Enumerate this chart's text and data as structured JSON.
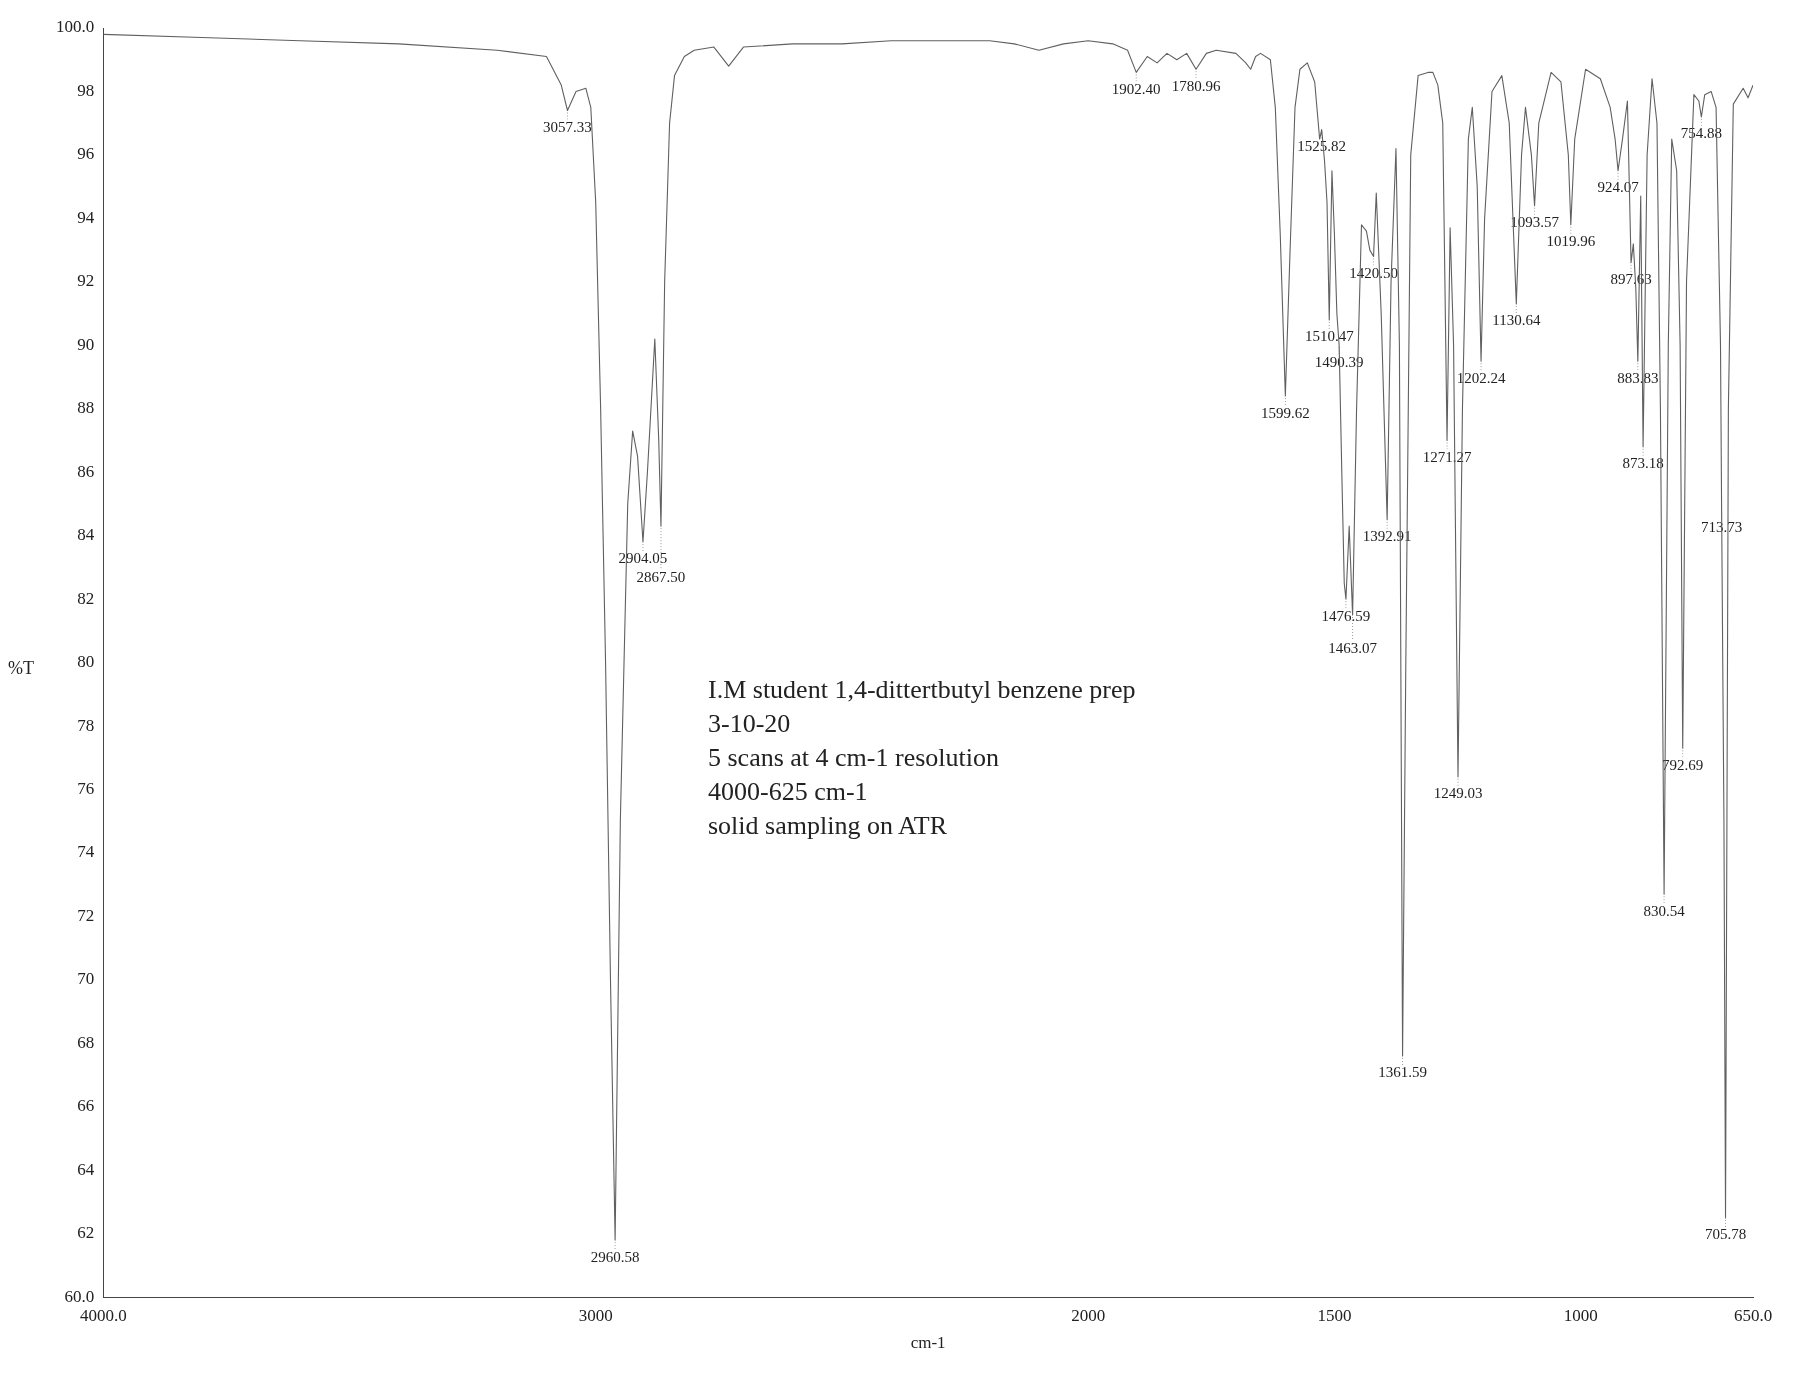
{
  "chart_data": {
    "type": "line",
    "xlabel": "cm-1",
    "ylabel": "%T",
    "xlim": [
      4000,
      650
    ],
    "xticks": [
      {
        "value": 4000,
        "label": "4000.0"
      },
      3000,
      2000,
      1500,
      1000,
      {
        "value": 650,
        "label": "650.0"
      }
    ],
    "ylim": [
      60,
      100
    ],
    "yticks": [
      {
        "value": 60,
        "label": "60.0"
      },
      62,
      64,
      66,
      68,
      70,
      72,
      74,
      76,
      78,
      80,
      82,
      84,
      86,
      88,
      90,
      92,
      94,
      96,
      98,
      {
        "value": 100,
        "label": "100.0"
      }
    ],
    "grid": false,
    "legend": false,
    "marker": "none",
    "line_style": "solid",
    "series": [
      {
        "color": "#606060",
        "x": [
          4000,
          3800,
          3600,
          3400,
          3200,
          3100,
          3070,
          3057.33,
          3040,
          3020,
          3010,
          3000,
          2990,
          2980,
          2970,
          2960.58,
          2950,
          2935,
          2925,
          2915,
          2904.05,
          2895,
          2880,
          2872,
          2867.5,
          2860,
          2850,
          2840,
          2820,
          2800,
          2760,
          2730,
          2700,
          2600,
          2500,
          2400,
          2300,
          2200,
          2150,
          2100,
          2050,
          2000,
          1950,
          1920,
          1902.4,
          1880,
          1860,
          1840,
          1820,
          1800,
          1780.96,
          1760,
          1740,
          1700,
          1680,
          1670,
          1660,
          1650,
          1630,
          1620,
          1610,
          1599.62,
          1590,
          1580,
          1570,
          1555,
          1540,
          1530,
          1525.82,
          1520,
          1515,
          1510.47,
          1505,
          1500,
          1495,
          1490.39,
          1485,
          1480,
          1476.59,
          1470,
          1463.07,
          1455,
          1445,
          1435,
          1428,
          1420.5,
          1415,
          1405,
          1392.91,
          1385,
          1375,
          1368,
          1361.59,
          1355,
          1345,
          1330,
          1310,
          1300,
          1290,
          1280,
          1271.27,
          1265,
          1258,
          1249.03,
          1240,
          1228,
          1220,
          1210,
          1202.24,
          1195,
          1180,
          1160,
          1145,
          1130.64,
          1120,
          1112,
          1100,
          1093.57,
          1085,
          1060,
          1040,
          1025,
          1019.96,
          1012,
          990,
          960,
          940,
          930,
          924.07,
          915,
          905,
          897.63,
          893,
          888,
          883.83,
          878,
          873.18,
          865,
          855,
          845,
          838,
          830.54,
          822,
          815,
          805,
          798,
          792.69,
          785,
          770,
          760,
          754.88,
          748,
          735,
          725,
          716,
          713.73,
          709,
          705.78,
          700,
          690,
          670,
          660,
          650
        ],
        "values": [
          99.8,
          99.7,
          99.6,
          99.5,
          99.3,
          99.1,
          98.2,
          97.4,
          98.0,
          98.1,
          97.5,
          94.5,
          88,
          80,
          70,
          61.8,
          75,
          85,
          87.3,
          86.5,
          83.8,
          86,
          90.2,
          87,
          84.3,
          92,
          97,
          98.5,
          99.1,
          99.3,
          99.4,
          98.8,
          99.4,
          99.5,
          99.5,
          99.6,
          99.6,
          99.6,
          99.5,
          99.3,
          99.5,
          99.6,
          99.5,
          99.3,
          98.6,
          99.1,
          98.9,
          99.2,
          99.0,
          99.2,
          98.7,
          99.2,
          99.3,
          99.2,
          98.9,
          98.7,
          99.1,
          99.2,
          99.0,
          97.5,
          93.5,
          88.4,
          93,
          97.5,
          98.7,
          98.9,
          98.3,
          96.5,
          96.8,
          95.8,
          94.5,
          90.8,
          95.5,
          93.5,
          91,
          90.0,
          86,
          82.5,
          82.0,
          84.3,
          81.5,
          88,
          93.8,
          93.6,
          93.0,
          92.8,
          94.8,
          91,
          84.5,
          92,
          96.2,
          90,
          67.6,
          80,
          96,
          98.5,
          98.6,
          98.6,
          98.2,
          97,
          87.0,
          93.7,
          90,
          76.4,
          88,
          96.5,
          97.5,
          95,
          89.5,
          94,
          98,
          98.5,
          97,
          91.3,
          96,
          97.5,
          96,
          94.4,
          97,
          98.6,
          98.3,
          96,
          93.8,
          96.5,
          98.7,
          98.4,
          97.5,
          96.5,
          95.5,
          96.5,
          97.7,
          92.6,
          93.2,
          91.8,
          89.5,
          94.7,
          86.8,
          96,
          98.4,
          97,
          88,
          72.7,
          90,
          96.5,
          95.5,
          90,
          77.3,
          92,
          97.9,
          97.7,
          97.2,
          97.9,
          98,
          97.5,
          90,
          84.8,
          75,
          62.5,
          88,
          97.6,
          98.1,
          97.8,
          98.2
        ]
      }
    ],
    "annotations": [
      {
        "text": "3057.33",
        "x": 3057.33,
        "y": 97.4
      },
      {
        "text": "2960.58",
        "x": 2960.58,
        "y": 61.8
      },
      {
        "text": "2904.05",
        "x": 2904.05,
        "y": 83.8
      },
      {
        "text": "2867.50",
        "x": 2867.5,
        "y": 84.3
      },
      {
        "text": "1902.40",
        "x": 1902.4,
        "y": 98.6
      },
      {
        "text": "1780.96",
        "x": 1780.96,
        "y": 98.7
      },
      {
        "text": "1599.62",
        "x": 1599.62,
        "y": 88.4
      },
      {
        "text": "1525.82",
        "x": 1525.82,
        "y": 96.8
      },
      {
        "text": "1510.47",
        "x": 1510.47,
        "y": 90.8
      },
      {
        "text": "1490.39",
        "x": 1490.39,
        "y": 90.0
      },
      {
        "text": "1476.59",
        "x": 1476.59,
        "y": 82.0
      },
      {
        "text": "1463.07",
        "x": 1463.07,
        "y": 81.5
      },
      {
        "text": "1420.50",
        "x": 1420.5,
        "y": 92.8
      },
      {
        "text": "1392.91",
        "x": 1392.91,
        "y": 84.5
      },
      {
        "text": "1361.59",
        "x": 1361.59,
        "y": 67.6
      },
      {
        "text": "1271.27",
        "x": 1271.27,
        "y": 87.0
      },
      {
        "text": "1249.03",
        "x": 1249.03,
        "y": 76.4
      },
      {
        "text": "1202.24",
        "x": 1202.24,
        "y": 89.5
      },
      {
        "text": "1130.64",
        "x": 1130.64,
        "y": 91.3
      },
      {
        "text": "1093.57",
        "x": 1093.57,
        "y": 94.4
      },
      {
        "text": "1019.96",
        "x": 1019.96,
        "y": 93.8
      },
      {
        "text": "924.07",
        "x": 924.07,
        "y": 95.5
      },
      {
        "text": "897.63",
        "x": 897.63,
        "y": 92.6
      },
      {
        "text": "883.83",
        "x": 883.83,
        "y": 89.5
      },
      {
        "text": "873.18",
        "x": 873.18,
        "y": 86.8
      },
      {
        "text": "830.54",
        "x": 830.54,
        "y": 72.7
      },
      {
        "text": "792.69",
        "x": 792.69,
        "y": 77.3
      },
      {
        "text": "754.88",
        "x": 754.88,
        "y": 97.2
      },
      {
        "text": "713.73",
        "x": 713.73,
        "y": 84.8
      },
      {
        "text": "705.78",
        "x": 705.78,
        "y": 62.5
      },
      "I.M student 1,4-dittertbutyl benzene prep",
      "3-10-20",
      "5 scans at 4 cm-1 resolution",
      "4000-625 cm-1",
      "solid sampling on ATR"
    ]
  }
}
